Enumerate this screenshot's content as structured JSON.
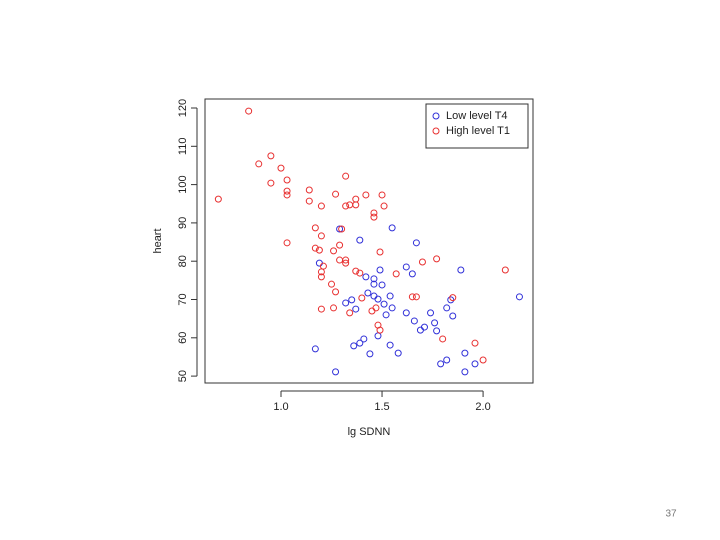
{
  "chart_data": {
    "type": "scatter",
    "xlabel": "lg SDNN",
    "ylabel": "heart",
    "xlim": [
      0.624,
      2.247
    ],
    "ylim": [
      48.2,
      122.35
    ],
    "xticks": [
      {
        "value": 1,
        "label": "1.0"
      },
      1.5,
      {
        "value": 2,
        "label": "2.0"
      }
    ],
    "yticks": [
      50,
      60,
      70,
      80,
      90,
      100,
      110,
      120
    ],
    "legend": "topright",
    "series": [
      {
        "name": "Low level T4",
        "color": "#3030d8",
        "x": [
          1.29,
          1.39,
          1.55,
          1.67,
          1.19,
          1.42,
          1.46,
          1.46,
          1.49,
          1.5,
          1.54,
          1.43,
          1.46,
          1.48,
          1.51,
          1.32,
          1.35,
          1.37,
          1.52,
          1.55,
          1.62,
          1.65,
          1.62,
          1.66,
          1.69,
          1.71,
          1.74,
          1.76,
          1.77,
          1.82,
          1.84,
          1.85,
          1.89,
          2.18,
          1.41,
          1.39,
          1.36,
          1.44,
          1.48,
          1.54,
          1.58,
          1.17,
          1.27,
          1.79,
          1.82,
          1.91,
          1.91,
          1.96
        ],
        "values": [
          88.4,
          85.5,
          88.7,
          84.8,
          79.5,
          75.9,
          75.4,
          74.0,
          77.7,
          73.8,
          70.9,
          71.7,
          70.9,
          70.1,
          68.8,
          69.1,
          69.9,
          67.5,
          66.0,
          67.8,
          78.5,
          76.7,
          66.5,
          64.4,
          62.0,
          62.8,
          66.5,
          63.9,
          61.8,
          67.8,
          69.9,
          65.7,
          77.7,
          70.7,
          59.7,
          58.6,
          57.9,
          55.8,
          60.5,
          58.1,
          56.0,
          57.1,
          51.1,
          53.2,
          54.2,
          56.0,
          51.1,
          53.2
        ]
      },
      {
        "name": "High level T1",
        "color": "#e83030",
        "x": [
          0.69,
          0.84,
          0.89,
          0.95,
          0.95,
          1.0,
          1.03,
          1.03,
          1.03,
          1.03,
          1.14,
          1.14,
          1.2,
          1.17,
          1.17,
          1.2,
          1.19,
          1.21,
          1.2,
          1.2,
          1.25,
          1.26,
          1.27,
          1.29,
          1.3,
          1.32,
          1.32,
          1.34,
          1.37,
          1.37,
          1.29,
          1.32,
          1.32,
          1.37,
          1.39,
          1.27,
          1.34,
          1.2,
          1.26,
          1.42,
          1.46,
          1.46,
          1.5,
          1.51,
          1.49,
          1.47,
          1.45,
          1.48,
          1.49,
          1.57,
          1.65,
          1.67,
          1.7,
          1.77,
          1.85,
          1.8,
          1.96,
          2.0,
          2.11,
          1.4
        ],
        "values": [
          96.2,
          119.2,
          105.4,
          107.5,
          100.4,
          104.3,
          101.2,
          98.3,
          97.3,
          84.8,
          98.6,
          95.7,
          94.4,
          88.7,
          83.4,
          86.6,
          82.9,
          78.7,
          77.2,
          75.9,
          74.0,
          82.7,
          97.5,
          84.2,
          88.4,
          102.2,
          94.4,
          94.7,
          94.7,
          96.2,
          80.3,
          80.3,
          79.5,
          77.4,
          76.9,
          72.0,
          66.5,
          67.5,
          67.8,
          97.3,
          92.6,
          91.5,
          97.3,
          94.4,
          82.4,
          67.8,
          67.0,
          63.3,
          62.0,
          76.7,
          70.7,
          70.7,
          79.8,
          80.6,
          70.5,
          59.7,
          58.6,
          54.2,
          77.7,
          70.4
        ]
      }
    ]
  },
  "slide": {
    "page_number": "37"
  }
}
